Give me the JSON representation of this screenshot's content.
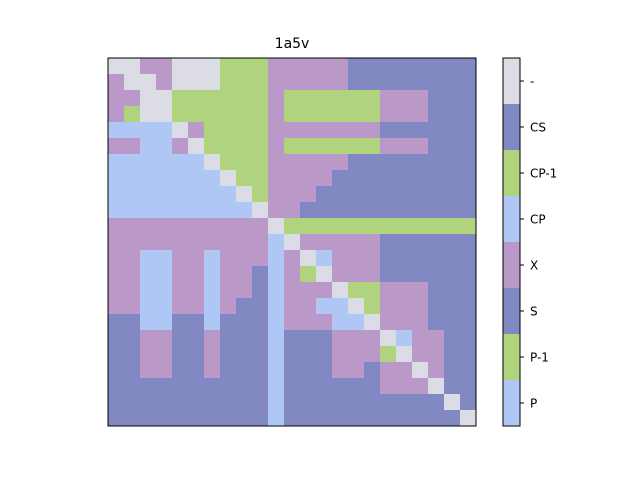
{
  "chart_data": {
    "type": "heatmap",
    "title": "1a5v",
    "xlabel": "",
    "ylabel": "",
    "grid": false,
    "legend": "colorbar-right",
    "colorbar": {
      "labels_top_to_bottom": [
        "-",
        "CS",
        "CP-1",
        "CP",
        "X",
        "S",
        "P-1",
        "P"
      ],
      "codes_top_to_bottom": [
        7,
        6,
        5,
        4,
        3,
        2,
        1,
        0
      ]
    },
    "categories": [
      {
        "code": 0,
        "label": "P",
        "color": "#aec7f4"
      },
      {
        "code": 1,
        "label": "P-1",
        "color": "#b0d47e"
      },
      {
        "code": 2,
        "label": "S",
        "color": "#8289c2"
      },
      {
        "code": 3,
        "label": "X",
        "color": "#ba99c8"
      },
      {
        "code": 4,
        "label": "CP",
        "color": "#aec7f4"
      },
      {
        "code": 5,
        "label": "CP-1",
        "color": "#b0d47e"
      },
      {
        "code": 6,
        "label": "CS",
        "color": "#8289c2"
      },
      {
        "code": 7,
        "label": "-",
        "color": "#dcdce5"
      }
    ],
    "matrix": [
      [
        7,
        7,
        3,
        3,
        7,
        7,
        7,
        1,
        1,
        1,
        3,
        3,
        3,
        3,
        3,
        2,
        2,
        2,
        2,
        2,
        2,
        2,
        2
      ],
      [
        3,
        7,
        7,
        3,
        7,
        7,
        7,
        1,
        1,
        1,
        3,
        3,
        3,
        3,
        3,
        2,
        2,
        2,
        2,
        2,
        2,
        2,
        2
      ],
      [
        3,
        3,
        7,
        7,
        1,
        1,
        1,
        1,
        1,
        1,
        3,
        5,
        5,
        5,
        5,
        5,
        5,
        3,
        3,
        3,
        2,
        2,
        2
      ],
      [
        3,
        1,
        7,
        7,
        1,
        1,
        1,
        1,
        1,
        1,
        3,
        5,
        5,
        5,
        5,
        5,
        5,
        3,
        3,
        3,
        2,
        2,
        2
      ],
      [
        4,
        4,
        4,
        4,
        7,
        3,
        1,
        1,
        1,
        1,
        3,
        3,
        3,
        3,
        3,
        3,
        3,
        2,
        2,
        2,
        2,
        2,
        2
      ],
      [
        3,
        3,
        4,
        4,
        3,
        7,
        1,
        1,
        1,
        1,
        3,
        5,
        5,
        5,
        5,
        5,
        5,
        3,
        3,
        3,
        2,
        2,
        2
      ],
      [
        4,
        4,
        4,
        4,
        4,
        4,
        7,
        1,
        1,
        1,
        3,
        3,
        3,
        3,
        3,
        2,
        2,
        2,
        2,
        2,
        2,
        2,
        2
      ],
      [
        4,
        4,
        4,
        4,
        4,
        4,
        4,
        7,
        1,
        1,
        3,
        3,
        3,
        3,
        2,
        2,
        2,
        2,
        2,
        2,
        2,
        2,
        2
      ],
      [
        4,
        4,
        4,
        4,
        4,
        4,
        4,
        4,
        7,
        1,
        3,
        3,
        3,
        2,
        2,
        2,
        2,
        2,
        2,
        2,
        2,
        2,
        2
      ],
      [
        4,
        4,
        4,
        4,
        4,
        4,
        4,
        4,
        4,
        7,
        3,
        3,
        2,
        2,
        2,
        2,
        2,
        2,
        2,
        2,
        2,
        2,
        2
      ],
      [
        3,
        3,
        3,
        3,
        3,
        3,
        3,
        3,
        3,
        3,
        7,
        5,
        5,
        5,
        5,
        5,
        5,
        5,
        5,
        5,
        5,
        5,
        5
      ],
      [
        3,
        3,
        3,
        3,
        3,
        3,
        3,
        3,
        3,
        3,
        4,
        7,
        3,
        3,
        3,
        3,
        3,
        2,
        2,
        2,
        2,
        2,
        2
      ],
      [
        3,
        3,
        4,
        4,
        3,
        3,
        4,
        3,
        3,
        3,
        4,
        3,
        7,
        4,
        3,
        3,
        3,
        2,
        2,
        2,
        2,
        2,
        2
      ],
      [
        3,
        3,
        4,
        4,
        3,
        3,
        4,
        3,
        3,
        2,
        4,
        3,
        5,
        7,
        3,
        3,
        3,
        2,
        2,
        2,
        2,
        2,
        2
      ],
      [
        3,
        3,
        4,
        4,
        3,
        3,
        4,
        3,
        3,
        2,
        4,
        3,
        3,
        3,
        7,
        5,
        5,
        3,
        3,
        3,
        2,
        2,
        2
      ],
      [
        3,
        3,
        4,
        4,
        3,
        3,
        4,
        3,
        2,
        2,
        4,
        3,
        3,
        4,
        4,
        7,
        5,
        3,
        3,
        3,
        2,
        2,
        2
      ],
      [
        2,
        2,
        4,
        4,
        2,
        2,
        4,
        2,
        2,
        2,
        4,
        3,
        3,
        3,
        4,
        4,
        7,
        3,
        3,
        3,
        2,
        2,
        2
      ],
      [
        2,
        2,
        3,
        3,
        2,
        2,
        3,
        2,
        2,
        2,
        4,
        2,
        2,
        2,
        3,
        3,
        3,
        7,
        4,
        3,
        3,
        2,
        2
      ],
      [
        2,
        2,
        3,
        3,
        2,
        2,
        3,
        2,
        2,
        2,
        4,
        2,
        2,
        2,
        3,
        3,
        3,
        5,
        7,
        3,
        3,
        2,
        2
      ],
      [
        2,
        2,
        3,
        3,
        2,
        2,
        3,
        2,
        2,
        2,
        4,
        2,
        2,
        2,
        3,
        3,
        2,
        3,
        3,
        7,
        3,
        2,
        2
      ],
      [
        2,
        2,
        2,
        2,
        2,
        2,
        2,
        2,
        2,
        2,
        4,
        2,
        2,
        2,
        2,
        2,
        2,
        3,
        3,
        3,
        7,
        2,
        2
      ],
      [
        2,
        2,
        2,
        2,
        2,
        2,
        2,
        2,
        2,
        2,
        4,
        2,
        2,
        2,
        2,
        2,
        2,
        2,
        2,
        2,
        2,
        7,
        2
      ],
      [
        2,
        2,
        2,
        2,
        2,
        2,
        2,
        2,
        2,
        2,
        4,
        2,
        2,
        2,
        2,
        2,
        2,
        2,
        2,
        2,
        2,
        2,
        7
      ]
    ]
  }
}
